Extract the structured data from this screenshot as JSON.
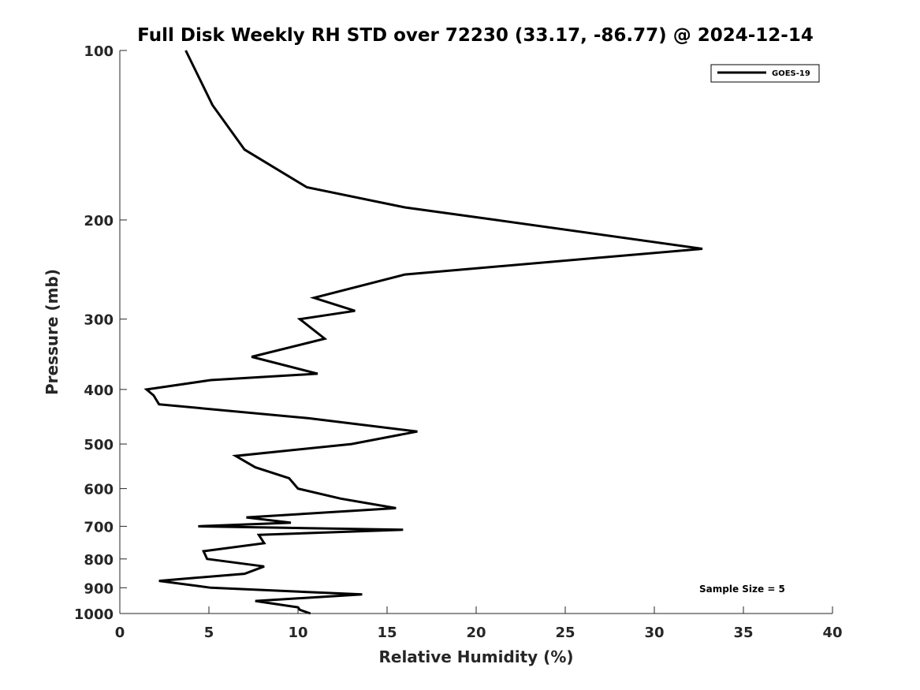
{
  "chart_data": {
    "type": "line",
    "title": "Full Disk Weekly RH STD over 72230 (33.17, -86.77) @ 2024-12-14",
    "xlabel": "Relative Humidity (%)",
    "ylabel": "Pressure (mb)",
    "xlim": [
      0,
      40
    ],
    "ylim": [
      100,
      1000
    ],
    "y_scale": "log",
    "y_reversed": true,
    "x_ticks": [
      0,
      5,
      10,
      15,
      20,
      25,
      30,
      35,
      40
    ],
    "y_ticks": [
      100,
      200,
      300,
      400,
      500,
      600,
      700,
      800,
      900,
      1000
    ],
    "grid": false,
    "legend_position": "top-right",
    "series": [
      {
        "name": "GOES-19",
        "color": "#000000",
        "x": [
          3.7,
          5.2,
          7.0,
          10.5,
          16.0,
          21.1,
          32.7,
          16.0,
          10.9,
          13.2,
          10.1,
          11.5,
          7.4,
          11.1,
          5.1,
          1.5,
          1.9,
          2.2,
          10.6,
          16.7,
          13.0,
          6.5,
          7.6,
          9.5,
          10.0,
          12.4,
          15.5,
          7.1,
          9.6,
          4.4,
          15.9,
          7.8,
          8.1,
          4.7,
          4.9,
          8.1,
          7.0,
          2.2,
          5.1,
          13.6,
          7.6,
          10.0,
          10.1,
          10.7
        ],
        "y": [
          100,
          125,
          150,
          175,
          190,
          200,
          225,
          250,
          275,
          290,
          300,
          325,
          350,
          375,
          385,
          400,
          410,
          425,
          450,
          475,
          500,
          525,
          550,
          575,
          600,
          625,
          650,
          675,
          690,
          700,
          710,
          725,
          750,
          775,
          800,
          825,
          850,
          875,
          900,
          925,
          950,
          975,
          985,
          1000
        ]
      }
    ],
    "annotations": [
      "Sample Size = 5"
    ]
  }
}
